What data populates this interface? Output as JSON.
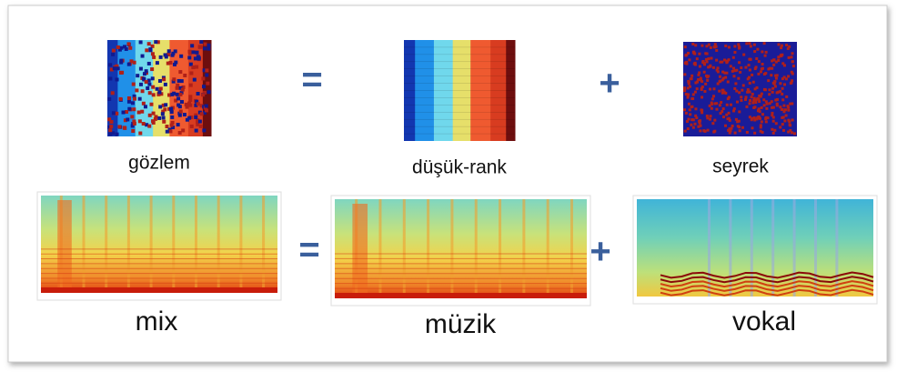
{
  "rows": [
    {
      "labels": [
        "gözlem",
        "düşük-rank",
        "seyrek"
      ],
      "operators": [
        "=",
        "+"
      ]
    },
    {
      "labels": [
        "mix",
        "müzik",
        "vokal"
      ],
      "operators": [
        "=",
        "+"
      ]
    }
  ]
}
